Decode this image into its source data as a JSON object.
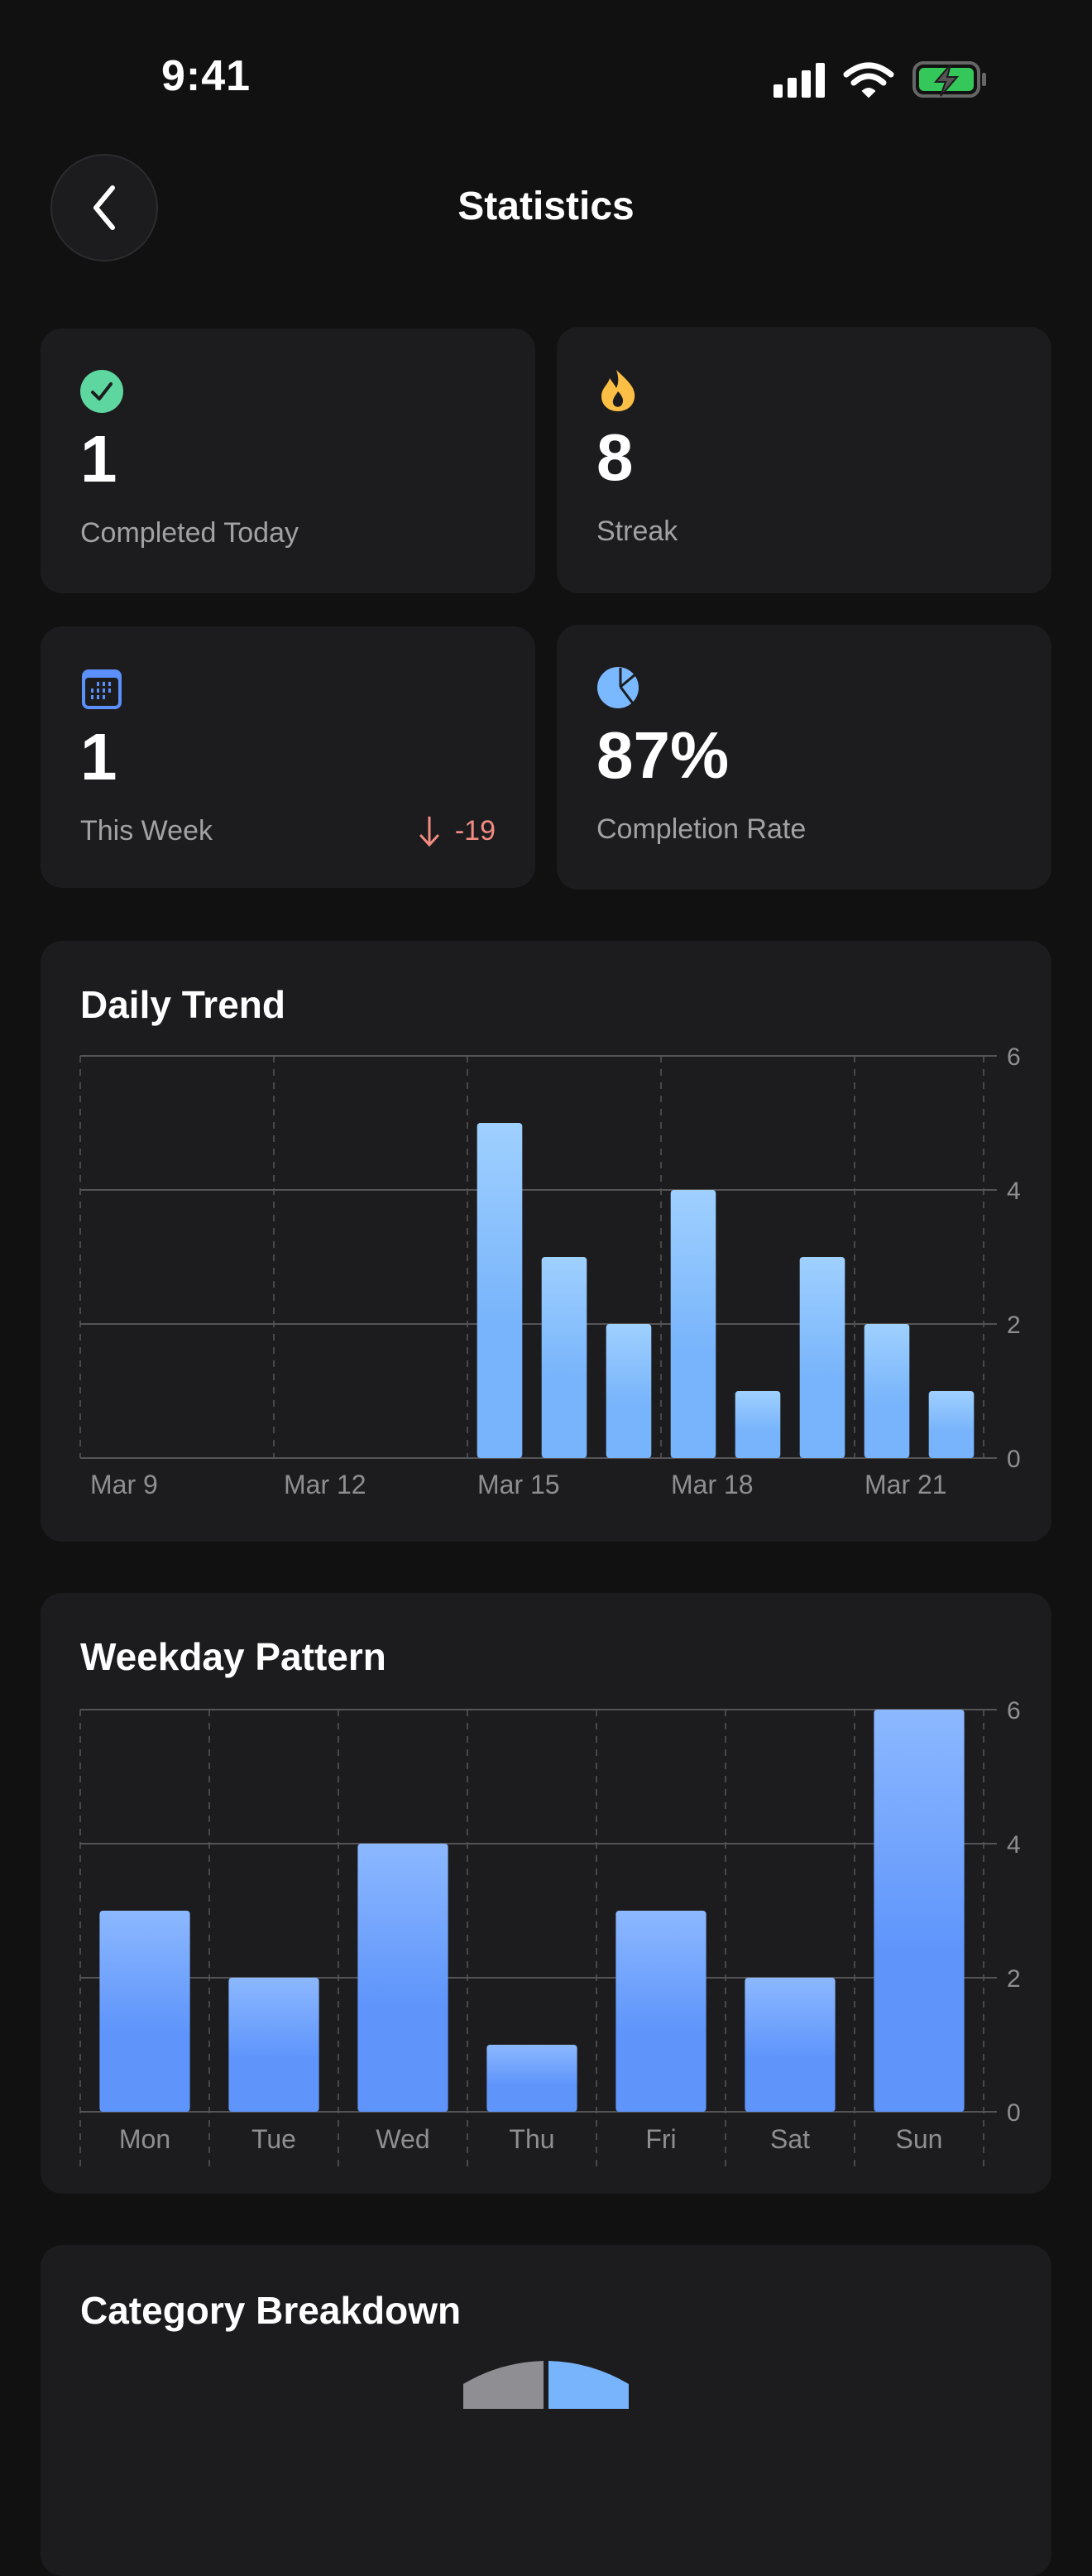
{
  "status_bar": {
    "time": "9:41",
    "battery_color": "#34c759"
  },
  "header": {
    "title": "Statistics",
    "back_icon": "chevron-left-icon"
  },
  "stats": [
    {
      "icon": "checkmark-circle-icon",
      "color": "#5ed6a0",
      "value": "1",
      "label": "Completed Today"
    },
    {
      "icon": "flame-icon",
      "color": "#fbbf45",
      "value": "8",
      "label": "Streak"
    },
    {
      "icon": "calendar-icon",
      "color": "#5b8ff9",
      "value": "1",
      "label": "This Week",
      "delta": "-19",
      "delta_icon": "arrow-down-icon",
      "delta_color": "#f28b82"
    },
    {
      "icon": "pie-chart-icon",
      "color": "#7ab8ff",
      "value": "87%",
      "label": "Completion Rate"
    }
  ],
  "chart_data": [
    {
      "type": "bar",
      "title": "Daily Trend",
      "categories": [
        "Mar 9",
        "Mar 10",
        "Mar 11",
        "Mar 12",
        "Mar 13",
        "Mar 14",
        "Mar 15",
        "Mar 16",
        "Mar 17",
        "Mar 18",
        "Mar 19",
        "Mar 20",
        "Mar 21",
        "Mar 22"
      ],
      "values": [
        0,
        0,
        0,
        0,
        0,
        0,
        5,
        3,
        2,
        4,
        1,
        3,
        2,
        1
      ],
      "x_tick_labels": [
        "Mar 9",
        "Mar 12",
        "Mar 15",
        "Mar 18",
        "Mar 21"
      ],
      "y_ticks": [
        "0",
        "2",
        "4",
        "6"
      ],
      "ylim": [
        0,
        6
      ],
      "y_axis_position": "right",
      "grid": true,
      "bar_color_top": "#9fd0ff",
      "bar_color_bottom": "#78b4fb"
    },
    {
      "type": "bar",
      "title": "Weekday Pattern",
      "categories": [
        "Mon",
        "Tue",
        "Wed",
        "Thu",
        "Fri",
        "Sat",
        "Sun"
      ],
      "values": [
        3,
        2,
        4,
        1,
        3,
        2,
        6
      ],
      "y_ticks": [
        "0",
        "2",
        "4",
        "6"
      ],
      "ylim": [
        0,
        6
      ],
      "y_axis_position": "right",
      "grid": true,
      "bar_color_top": "#8cb8ff",
      "bar_color_bottom": "#5f95fb"
    }
  ],
  "category": {
    "title": "Category Breakdown",
    "slice_colors": [
      "#78b4fb",
      "#8e8e93"
    ]
  }
}
